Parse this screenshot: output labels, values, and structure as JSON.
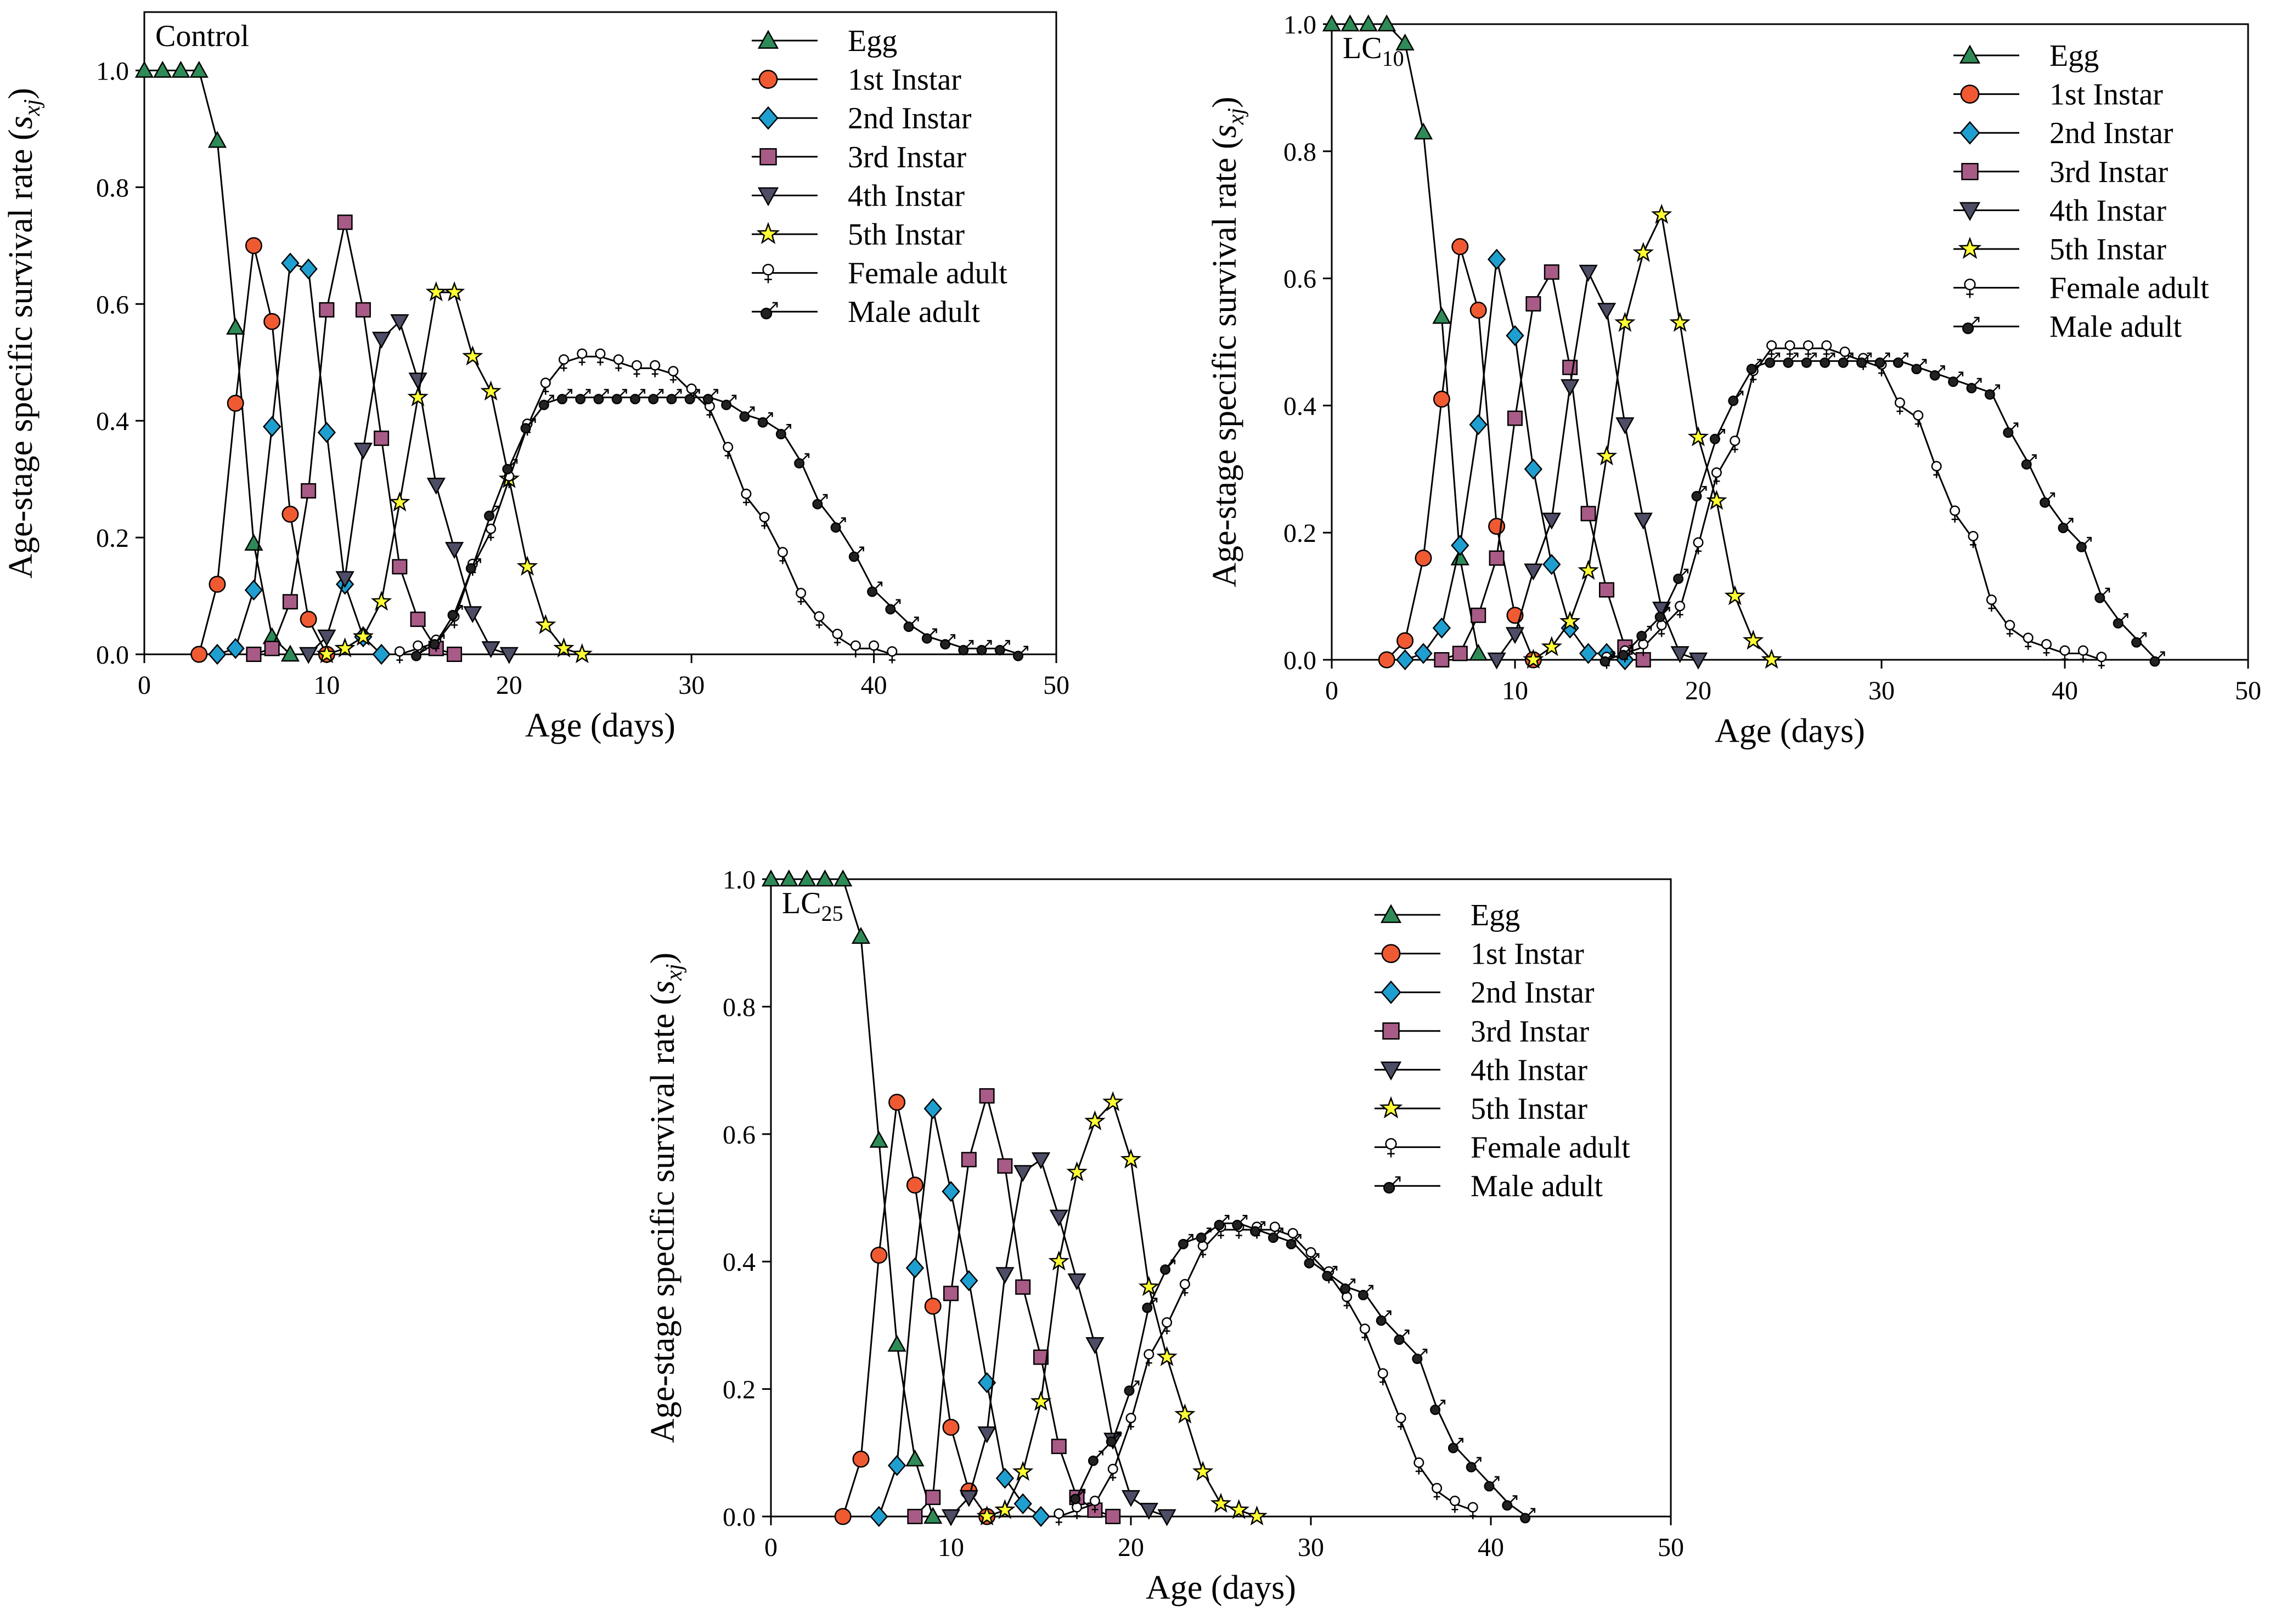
{
  "figure": {
    "y_axis_title": "Age-stage specific survival rate",
    "y_axis_symbol": "s",
    "y_axis_subscript": "xj",
    "x_axis_title": "Age (days)"
  },
  "legend_entries": [
    "Egg",
    "1st Instar",
    "2nd Instar",
    "3rd Instar",
    "4th Instar",
    "5th Instar",
    "Female adult",
    "Male adult"
  ],
  "series_styles": {
    "Egg": {
      "marker": "triangle-up",
      "color": "#2e8b57"
    },
    "1st Instar": {
      "marker": "circle",
      "color": "#f05a32"
    },
    "2nd Instar": {
      "marker": "diamond",
      "color": "#1f9fd0"
    },
    "3rd Instar": {
      "marker": "square",
      "color": "#a85b86"
    },
    "4th Instar": {
      "marker": "triangle-down",
      "color": "#4d4d66"
    },
    "5th Instar": {
      "marker": "star",
      "color": "#ffff33"
    },
    "Female adult": {
      "marker": "female",
      "color": "#ffffff"
    },
    "Male adult": {
      "marker": "male",
      "color": "#222222"
    }
  },
  "chart_data": [
    {
      "type": "line",
      "label": "Control",
      "label_main": "Control",
      "label_sub": "",
      "xlim": [
        0,
        50
      ],
      "ylim": [
        0,
        1.1
      ],
      "xticks": [
        "0",
        "10",
        "20",
        "30",
        "40",
        "50"
      ],
      "yticks": [
        "0.0",
        "0.2",
        "0.4",
        "0.6",
        "0.8",
        "1.0"
      ],
      "xtick_values": [
        0,
        10,
        20,
        30,
        40,
        50
      ],
      "ytick_values": [
        0,
        0.2,
        0.4,
        0.6,
        0.8,
        1.0
      ],
      "series": [
        {
          "name": "Egg",
          "x": [
            0,
            1,
            2,
            3,
            4,
            5,
            6,
            7,
            8
          ],
          "y": [
            1.0,
            1.0,
            1.0,
            1.0,
            0.88,
            0.56,
            0.19,
            0.03,
            0.0
          ]
        },
        {
          "name": "1st Instar",
          "x": [
            3,
            4,
            5,
            6,
            7,
            8,
            9,
            10
          ],
          "y": [
            0.0,
            0.12,
            0.43,
            0.7,
            0.57,
            0.24,
            0.06,
            0.0
          ]
        },
        {
          "name": "2nd Instar",
          "x": [
            4,
            5,
            6,
            7,
            8,
            9,
            10,
            11,
            12,
            13
          ],
          "y": [
            0.0,
            0.01,
            0.11,
            0.39,
            0.67,
            0.66,
            0.38,
            0.12,
            0.03,
            0.0
          ]
        },
        {
          "name": "3rd Instar",
          "x": [
            6,
            7,
            8,
            9,
            10,
            11,
            12,
            13,
            14,
            15,
            16,
            17
          ],
          "y": [
            0.0,
            0.01,
            0.09,
            0.28,
            0.59,
            0.74,
            0.59,
            0.37,
            0.15,
            0.06,
            0.01,
            0.0
          ]
        },
        {
          "name": "4th Instar",
          "x": [
            9,
            10,
            11,
            12,
            13,
            14,
            15,
            16,
            17,
            18,
            19,
            20
          ],
          "y": [
            0.0,
            0.03,
            0.13,
            0.35,
            0.54,
            0.57,
            0.47,
            0.29,
            0.18,
            0.07,
            0.01,
            0.0
          ]
        },
        {
          "name": "5th Instar",
          "x": [
            10,
            11,
            12,
            13,
            14,
            15,
            16,
            17,
            18,
            19,
            20,
            21,
            22,
            23,
            24
          ],
          "y": [
            0.0,
            0.01,
            0.03,
            0.09,
            0.26,
            0.44,
            0.62,
            0.62,
            0.51,
            0.45,
            0.3,
            0.15,
            0.05,
            0.01,
            0.0
          ]
        },
        {
          "name": "Female adult",
          "x": [
            14,
            15,
            16,
            17,
            18,
            19,
            20,
            21,
            22,
            23,
            24,
            25,
            26,
            27,
            28,
            29,
            30,
            31,
            32,
            33,
            34,
            35,
            36,
            37,
            38,
            39,
            40,
            41
          ],
          "y": [
            0.0,
            0.01,
            0.02,
            0.06,
            0.15,
            0.21,
            0.3,
            0.39,
            0.46,
            0.5,
            0.51,
            0.51,
            0.5,
            0.49,
            0.49,
            0.48,
            0.45,
            0.42,
            0.35,
            0.27,
            0.23,
            0.17,
            0.1,
            0.06,
            0.03,
            0.01,
            0.01,
            0.0
          ]
        },
        {
          "name": "Male adult",
          "x": [
            15,
            16,
            17,
            18,
            19,
            20,
            21,
            22,
            23,
            24,
            25,
            26,
            27,
            28,
            29,
            30,
            31,
            32,
            33,
            34,
            35,
            36,
            37,
            38,
            39,
            40,
            41,
            42,
            43,
            44,
            45,
            46,
            47,
            48
          ],
          "y": [
            0.0,
            0.02,
            0.07,
            0.15,
            0.24,
            0.32,
            0.39,
            0.43,
            0.44,
            0.44,
            0.44,
            0.44,
            0.44,
            0.44,
            0.44,
            0.44,
            0.44,
            0.43,
            0.41,
            0.4,
            0.38,
            0.33,
            0.26,
            0.22,
            0.17,
            0.11,
            0.08,
            0.05,
            0.03,
            0.02,
            0.01,
            0.01,
            0.01,
            0.0
          ]
        }
      ]
    },
    {
      "type": "line",
      "label": "LC10",
      "label_main": "LC",
      "label_sub": "10",
      "xlim": [
        0,
        50
      ],
      "ylim": [
        0,
        1.0
      ],
      "xticks": [
        "0",
        "10",
        "20",
        "30",
        "40",
        "50"
      ],
      "yticks": [
        "0.0",
        "0.2",
        "0.4",
        "0.6",
        "0.8",
        "1.0"
      ],
      "xtick_values": [
        0,
        10,
        20,
        30,
        40,
        50
      ],
      "ytick_values": [
        0,
        0.2,
        0.4,
        0.6,
        0.8,
        1.0
      ],
      "series": [
        {
          "name": "Egg",
          "x": [
            0,
            1,
            2,
            3,
            4,
            5,
            6,
            7,
            8
          ],
          "y": [
            1.0,
            1.0,
            1.0,
            1.0,
            0.97,
            0.83,
            0.54,
            0.16,
            0.01
          ]
        },
        {
          "name": "1st Instar",
          "x": [
            3,
            4,
            5,
            6,
            7,
            8,
            9,
            10,
            11
          ],
          "y": [
            0.0,
            0.03,
            0.16,
            0.41,
            0.65,
            0.55,
            0.21,
            0.07,
            0.0
          ]
        },
        {
          "name": "2nd Instar",
          "x": [
            4,
            5,
            6,
            7,
            8,
            9,
            10,
            11,
            12,
            13,
            14,
            15,
            16
          ],
          "y": [
            0.0,
            0.01,
            0.05,
            0.18,
            0.37,
            0.63,
            0.51,
            0.3,
            0.15,
            0.05,
            0.01,
            0.01,
            0.0
          ]
        },
        {
          "name": "3rd Instar",
          "x": [
            6,
            7,
            8,
            9,
            10,
            11,
            12,
            13,
            14,
            15,
            16,
            17
          ],
          "y": [
            0.0,
            0.01,
            0.07,
            0.16,
            0.38,
            0.56,
            0.61,
            0.46,
            0.23,
            0.11,
            0.02,
            0.0
          ]
        },
        {
          "name": "4th Instar",
          "x": [
            9,
            10,
            11,
            12,
            13,
            14,
            15,
            16,
            17,
            18,
            19,
            20
          ],
          "y": [
            0.0,
            0.04,
            0.14,
            0.22,
            0.43,
            0.61,
            0.55,
            0.37,
            0.22,
            0.08,
            0.01,
            0.0
          ]
        },
        {
          "name": "5th Instar",
          "x": [
            11,
            12,
            13,
            14,
            15,
            16,
            17,
            18,
            19,
            20,
            21,
            22,
            23,
            24
          ],
          "y": [
            0.0,
            0.02,
            0.06,
            0.14,
            0.32,
            0.53,
            0.64,
            0.7,
            0.53,
            0.35,
            0.25,
            0.1,
            0.03,
            0.0
          ]
        },
        {
          "name": "Female adult",
          "x": [
            15,
            16,
            17,
            18,
            19,
            20,
            21,
            22,
            23,
            24,
            25,
            26,
            27,
            28,
            29,
            30,
            31,
            32,
            33,
            34,
            35,
            36,
            37,
            38,
            39,
            40,
            41,
            42
          ],
          "y": [
            0.0,
            0.01,
            0.02,
            0.05,
            0.08,
            0.18,
            0.29,
            0.34,
            0.45,
            0.49,
            0.49,
            0.49,
            0.49,
            0.48,
            0.47,
            0.46,
            0.4,
            0.38,
            0.3,
            0.23,
            0.19,
            0.09,
            0.05,
            0.03,
            0.02,
            0.01,
            0.01,
            0.0
          ]
        },
        {
          "name": "Male adult",
          "x": [
            15,
            16,
            17,
            18,
            19,
            20,
            21,
            22,
            23,
            24,
            25,
            26,
            27,
            28,
            29,
            30,
            31,
            32,
            33,
            34,
            35,
            36,
            37,
            38,
            39,
            40,
            41,
            42,
            43,
            44,
            45
          ],
          "y": [
            0.0,
            0.01,
            0.04,
            0.07,
            0.13,
            0.26,
            0.35,
            0.41,
            0.46,
            0.47,
            0.47,
            0.47,
            0.47,
            0.47,
            0.47,
            0.47,
            0.47,
            0.46,
            0.45,
            0.44,
            0.43,
            0.42,
            0.36,
            0.31,
            0.25,
            0.21,
            0.18,
            0.1,
            0.06,
            0.03,
            0.0
          ]
        }
      ]
    },
    {
      "type": "line",
      "label": "LC25",
      "label_main": "LC",
      "label_sub": "25",
      "xlim": [
        0,
        50
      ],
      "ylim": [
        0,
        1.0
      ],
      "xticks": [
        "0",
        "10",
        "20",
        "30",
        "40",
        "50"
      ],
      "yticks": [
        "0.0",
        "0.2",
        "0.4",
        "0.6",
        "0.8",
        "1.0"
      ],
      "xtick_values": [
        0,
        10,
        20,
        30,
        40,
        50
      ],
      "ytick_values": [
        0,
        0.2,
        0.4,
        0.6,
        0.8,
        1.0
      ],
      "series": [
        {
          "name": "Egg",
          "x": [
            0,
            1,
            2,
            3,
            4,
            5,
            6,
            7,
            8,
            9
          ],
          "y": [
            1.0,
            1.0,
            1.0,
            1.0,
            1.0,
            0.91,
            0.59,
            0.27,
            0.09,
            0.0
          ]
        },
        {
          "name": "1st Instar",
          "x": [
            4,
            5,
            6,
            7,
            8,
            9,
            10,
            11,
            12
          ],
          "y": [
            0.0,
            0.09,
            0.41,
            0.65,
            0.52,
            0.33,
            0.14,
            0.04,
            0.0
          ]
        },
        {
          "name": "2nd Instar",
          "x": [
            6,
            7,
            8,
            9,
            10,
            11,
            12,
            13,
            14,
            15
          ],
          "y": [
            0.0,
            0.08,
            0.39,
            0.64,
            0.51,
            0.37,
            0.21,
            0.06,
            0.02,
            0.0
          ]
        },
        {
          "name": "3rd Instar",
          "x": [
            8,
            9,
            10,
            11,
            12,
            13,
            14,
            15,
            16,
            17,
            18,
            19
          ],
          "y": [
            0.0,
            0.03,
            0.35,
            0.56,
            0.66,
            0.55,
            0.36,
            0.25,
            0.11,
            0.03,
            0.01,
            0.0
          ]
        },
        {
          "name": "4th Instar",
          "x": [
            10,
            11,
            12,
            13,
            14,
            15,
            16,
            17,
            18,
            19,
            20,
            21,
            22
          ],
          "y": [
            0.0,
            0.03,
            0.13,
            0.38,
            0.54,
            0.56,
            0.47,
            0.37,
            0.27,
            0.12,
            0.03,
            0.01,
            0.0
          ]
        },
        {
          "name": "5th Instar",
          "x": [
            12,
            13,
            14,
            15,
            16,
            17,
            18,
            19,
            20,
            21,
            22,
            23,
            24,
            25,
            26,
            27
          ],
          "y": [
            0.0,
            0.01,
            0.07,
            0.18,
            0.4,
            0.54,
            0.62,
            0.65,
            0.56,
            0.36,
            0.25,
            0.16,
            0.07,
            0.02,
            0.01,
            0.0
          ]
        },
        {
          "name": "Female adult",
          "x": [
            16,
            17,
            18,
            19,
            20,
            21,
            22,
            23,
            24,
            25,
            26,
            27,
            28,
            29,
            30,
            31,
            32,
            33,
            34,
            35,
            36,
            37,
            38,
            39
          ],
          "y": [
            0.0,
            0.01,
            0.02,
            0.07,
            0.15,
            0.25,
            0.3,
            0.36,
            0.42,
            0.45,
            0.45,
            0.45,
            0.45,
            0.44,
            0.41,
            0.38,
            0.34,
            0.29,
            0.22,
            0.15,
            0.08,
            0.04,
            0.02,
            0.01
          ]
        },
        {
          "name": "Male adult",
          "x": [
            17,
            18,
            19,
            20,
            21,
            22,
            23,
            24,
            25,
            26,
            27,
            28,
            29,
            30,
            31,
            32,
            33,
            34,
            35,
            36,
            37,
            38,
            39,
            40,
            41,
            42
          ],
          "y": [
            0.03,
            0.09,
            0.12,
            0.2,
            0.33,
            0.39,
            0.43,
            0.44,
            0.46,
            0.46,
            0.45,
            0.44,
            0.43,
            0.4,
            0.38,
            0.36,
            0.35,
            0.31,
            0.28,
            0.25,
            0.17,
            0.11,
            0.08,
            0.05,
            0.02,
            0.0
          ]
        }
      ]
    }
  ]
}
